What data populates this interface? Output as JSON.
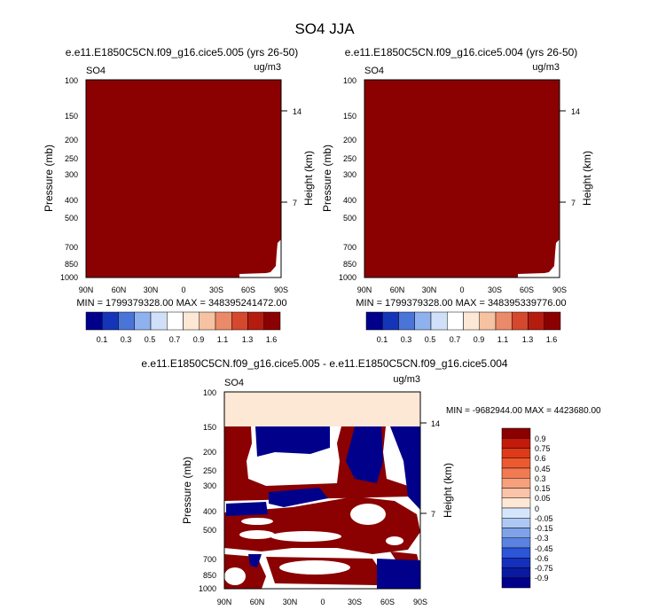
{
  "page": {
    "title": "SO4 JJA"
  },
  "colors": {
    "dark_red": "#8b0000",
    "dark_blue": "#00008b",
    "cream": "#fde8d6",
    "white": "#ffffff"
  },
  "chart_data": [
    {
      "type": "heatmap",
      "title": "e.e11.E1850C5CN.f09_g16.cice5.005 (yrs 26-50)",
      "left_label": "SO4",
      "units": "ug/m3",
      "ylabel": "Pressure (mb)",
      "ylabel_right": "Height (km)",
      "x_ticks": [
        "90N",
        "60N",
        "30N",
        "0",
        "30S",
        "60S",
        "90S"
      ],
      "y_ticks": [
        "100",
        "150",
        "200",
        "250",
        "300",
        "400",
        "500",
        "700",
        "850",
        "1000"
      ],
      "y_right_ticks": [
        "14",
        "7"
      ],
      "stats": "MIN = 1799379328.00  MAX = 348395241472.00",
      "colorbar_labels": [
        "0.1",
        "0.3",
        "0.5",
        "0.7",
        "0.9",
        "1.1",
        "1.3",
        "1.6"
      ],
      "colorbar_colors": [
        "#00008b",
        "#1535b8",
        "#4a74d8",
        "#8fb2ee",
        "#cfe0f8",
        "#ffffff",
        "#fde8d6",
        "#f6c2a2",
        "#eb8a68",
        "#d4482e",
        "#b41c10",
        "#8b0000"
      ]
    },
    {
      "type": "heatmap",
      "title": "e.e11.E1850C5CN.f09_g16.cice5.004 (yrs 26-50)",
      "left_label": "SO4",
      "units": "ug/m3",
      "ylabel": "Pressure (mb)",
      "ylabel_right": "Height (km)",
      "x_ticks": [
        "90N",
        "60N",
        "30N",
        "0",
        "30S",
        "60S",
        "90S"
      ],
      "y_ticks": [
        "100",
        "150",
        "200",
        "250",
        "300",
        "400",
        "500",
        "700",
        "850",
        "1000"
      ],
      "y_right_ticks": [
        "14",
        "7"
      ],
      "stats": "MIN = 1799379328.00  MAX = 348395339776.00",
      "colorbar_labels": [
        "0.1",
        "0.3",
        "0.5",
        "0.7",
        "0.9",
        "1.1",
        "1.3",
        "1.6"
      ],
      "colorbar_colors": [
        "#00008b",
        "#1535b8",
        "#4a74d8",
        "#8fb2ee",
        "#cfe0f8",
        "#ffffff",
        "#fde8d6",
        "#f6c2a2",
        "#eb8a68",
        "#d4482e",
        "#b41c10",
        "#8b0000"
      ]
    },
    {
      "type": "heatmap",
      "title": "e.e11.E1850C5CN.f09_g16.cice5.005 - e.e11.E1850C5CN.f09_g16.cice5.004",
      "left_label": "SO4",
      "units": "ug/m3",
      "ylabel": "Pressure (mb)",
      "ylabel_right": "Height (km)",
      "x_ticks": [
        "90N",
        "60N",
        "30N",
        "0",
        "30S",
        "60S",
        "90S"
      ],
      "y_ticks": [
        "100",
        "150",
        "200",
        "250",
        "300",
        "400",
        "500",
        "700",
        "850",
        "1000"
      ],
      "y_right_ticks": [
        "14",
        "7"
      ],
      "stats": "MIN = -9682944.00  MAX = 4423680.00",
      "colorbar_labels": [
        "0.9",
        "0.75",
        "0.6",
        "0.45",
        "0.3",
        "0.15",
        "0.05",
        "0",
        "-0.05",
        "-0.15",
        "-0.3",
        "-0.45",
        "-0.6",
        "-0.75",
        "-0.9"
      ],
      "colorbar_colors": [
        "#8b0000",
        "#c41a0a",
        "#de3a18",
        "#ec5a30",
        "#f27a52",
        "#f7a07c",
        "#fbc4a8",
        "#fde8d6",
        "#d6e6fa",
        "#adc8f2",
        "#7fa2e8",
        "#5a82e2",
        "#2c55d8",
        "#1430bd",
        "#0a1aa0",
        "#00008b"
      ]
    }
  ]
}
